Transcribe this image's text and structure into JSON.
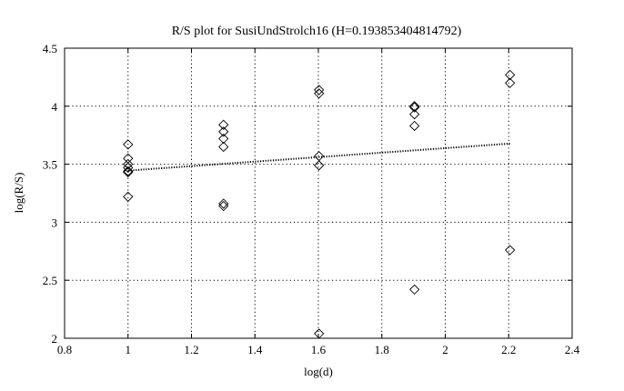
{
  "chart_data": {
    "type": "scatter",
    "title": "R/S plot for SusiUndStrolch16 (H=0.193853404814792)",
    "xlabel": "log(d)",
    "ylabel": "log(R/S)",
    "xlim": [
      0.8,
      2.4
    ],
    "ylim": [
      2,
      4.5
    ],
    "x_ticks": [
      "0.8",
      "1",
      "1.2",
      "1.4",
      "1.6",
      "1.8",
      "2",
      "2.2",
      "2.4"
    ],
    "y_ticks": [
      "2",
      "2.5",
      "3",
      "3.5",
      "4",
      "4.5"
    ],
    "grid": true,
    "marker": "diamond",
    "points": [
      [
        1.0,
        3.67
      ],
      [
        1.0,
        3.55
      ],
      [
        1.0,
        3.5
      ],
      [
        1.0,
        3.47
      ],
      [
        1.0,
        3.44
      ],
      [
        1.0,
        3.43
      ],
      [
        1.0,
        3.22
      ],
      [
        1.301,
        3.84
      ],
      [
        1.301,
        3.78
      ],
      [
        1.301,
        3.72
      ],
      [
        1.301,
        3.65
      ],
      [
        1.301,
        3.16
      ],
      [
        1.301,
        3.14
      ],
      [
        1.602,
        4.14
      ],
      [
        1.602,
        4.11
      ],
      [
        1.602,
        3.57
      ],
      [
        1.602,
        3.49
      ],
      [
        1.602,
        2.04
      ],
      [
        1.903,
        4.0
      ],
      [
        1.903,
        3.99
      ],
      [
        1.903,
        3.93
      ],
      [
        1.903,
        3.83
      ],
      [
        1.903,
        2.42
      ],
      [
        2.204,
        4.27
      ],
      [
        2.204,
        4.2
      ],
      [
        2.204,
        2.76
      ]
    ],
    "fit_line": {
      "x": [
        1.0,
        2.204
      ],
      "y": [
        3.445,
        3.678
      ]
    }
  }
}
